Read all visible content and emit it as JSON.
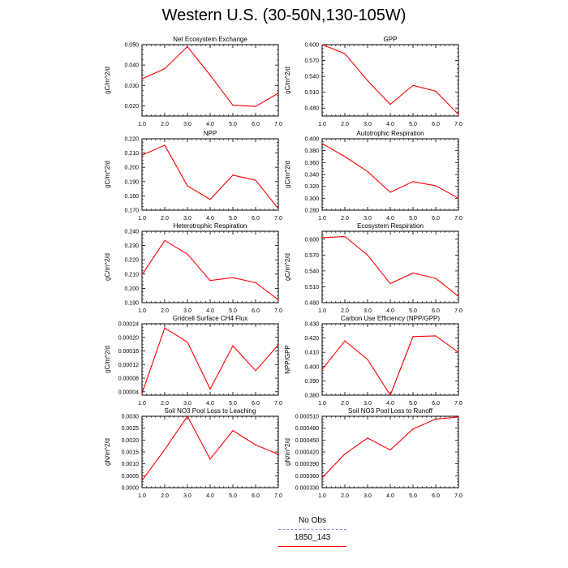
{
  "page": {
    "title": "Western U.S. (30-50N,130-105W)"
  },
  "legend": {
    "items": [
      {
        "name": "No Obs",
        "color": "#8a8aff",
        "style": "dashed"
      },
      {
        "name": "1850_143",
        "color": "#ff0000",
        "style": "solid"
      }
    ]
  },
  "chart_data": [
    {
      "type": "line",
      "title": "Net Ecosystem Exchange",
      "xlabel": "",
      "ylabel": "gC/m^2/d",
      "x": [
        1.0,
        2.0,
        3.0,
        4.0,
        5.0,
        6.0,
        7.0
      ],
      "xlim": [
        1.0,
        7.0
      ],
      "xticks": [
        "1.0",
        "2.0",
        "3.0",
        "4.0",
        "5.0",
        "6.0",
        "7.0"
      ],
      "ylim": [
        0.015,
        0.05
      ],
      "yticks": [
        "0.020",
        "0.030",
        "0.040",
        "0.050"
      ],
      "series": [
        {
          "name": "1850_143",
          "color": "#ff0000",
          "values": [
            0.0332,
            0.0382,
            0.049,
            0.035,
            0.0203,
            0.0197,
            0.0262
          ]
        }
      ]
    },
    {
      "type": "line",
      "title": "GPP",
      "xlabel": "",
      "ylabel": "gC/m^2/d",
      "x": [
        1.0,
        2.0,
        3.0,
        4.0,
        5.0,
        6.0,
        7.0
      ],
      "xlim": [
        1.0,
        7.0
      ],
      "xticks": [
        "1.0",
        "2.0",
        "3.0",
        "4.0",
        "5.0",
        "6.0",
        "7.0"
      ],
      "ylim": [
        0.465,
        0.6
      ],
      "yticks": [
        "0.480",
        "0.510",
        "0.540",
        "0.570",
        "0.600"
      ],
      "series": [
        {
          "name": "1850_143",
          "color": "#ff0000",
          "values": [
            0.6,
            0.583,
            0.532,
            0.487,
            0.523,
            0.512,
            0.468
          ]
        }
      ]
    },
    {
      "type": "line",
      "title": "NPP",
      "xlabel": "",
      "ylabel": "gC/m^2/d",
      "x": [
        1.0,
        2.0,
        3.0,
        4.0,
        5.0,
        6.0,
        7.0
      ],
      "xlim": [
        1.0,
        7.0
      ],
      "xticks": [
        "1.0",
        "2.0",
        "3.0",
        "4.0",
        "5.0",
        "6.0",
        "7.0"
      ],
      "ylim": [
        0.17,
        0.22
      ],
      "yticks": [
        "0.170",
        "0.180",
        "0.190",
        "0.200",
        "0.210",
        "0.220"
      ],
      "series": [
        {
          "name": "1850_143",
          "color": "#ff0000",
          "values": [
            0.2085,
            0.2155,
            0.187,
            0.1775,
            0.1945,
            0.191,
            0.171
          ]
        }
      ]
    },
    {
      "type": "line",
      "title": "Autotrophic Respiration",
      "xlabel": "",
      "ylabel": "gC/m^2/d",
      "x": [
        1.0,
        2.0,
        3.0,
        4.0,
        5.0,
        6.0,
        7.0
      ],
      "xlim": [
        1.0,
        7.0
      ],
      "xticks": [
        "1.0",
        "2.0",
        "3.0",
        "4.0",
        "5.0",
        "6.0",
        "7.0"
      ],
      "ylim": [
        0.28,
        0.4
      ],
      "yticks": [
        "0.280",
        "0.300",
        "0.320",
        "0.340",
        "0.360",
        "0.380",
        "0.400"
      ],
      "series": [
        {
          "name": "1850_143",
          "color": "#ff0000",
          "values": [
            0.392,
            0.37,
            0.345,
            0.31,
            0.328,
            0.321,
            0.3
          ]
        }
      ]
    },
    {
      "type": "line",
      "title": "Heterotrophic Respiration",
      "xlabel": "",
      "ylabel": "gC/m^2/d",
      "x": [
        1.0,
        2.0,
        3.0,
        4.0,
        5.0,
        6.0,
        7.0
      ],
      "xlim": [
        1.0,
        7.0
      ],
      "xticks": [
        "1.0",
        "2.0",
        "3.0",
        "4.0",
        "5.0",
        "6.0",
        "7.0"
      ],
      "ylim": [
        0.19,
        0.24
      ],
      "yticks": [
        "0.190",
        "0.200",
        "0.210",
        "0.220",
        "0.230",
        "0.240"
      ],
      "series": [
        {
          "name": "1850_143",
          "color": "#ff0000",
          "values": [
            0.2095,
            0.2335,
            0.224,
            0.2055,
            0.2075,
            0.204,
            0.192
          ]
        }
      ]
    },
    {
      "type": "line",
      "title": "Ecosystem Respiration",
      "xlabel": "",
      "ylabel": "gC/m^2/d",
      "x": [
        1.0,
        2.0,
        3.0,
        4.0,
        5.0,
        6.0,
        7.0
      ],
      "xlim": [
        1.0,
        7.0
      ],
      "xticks": [
        "1.0",
        "2.0",
        "3.0",
        "4.0",
        "5.0",
        "6.0",
        "7.0"
      ],
      "ylim": [
        0.48,
        0.615
      ],
      "yticks": [
        "0.480",
        "0.510",
        "0.540",
        "0.570",
        "0.600"
      ],
      "series": [
        {
          "name": "1850_143",
          "color": "#ff0000",
          "values": [
            0.603,
            0.605,
            0.57,
            0.516,
            0.536,
            0.526,
            0.492
          ]
        }
      ]
    },
    {
      "type": "line",
      "title": "Gridcell Surface CH4 Flux",
      "xlabel": "",
      "ylabel": "gC/m^2/d",
      "x": [
        1.0,
        2.0,
        3.0,
        4.0,
        5.0,
        6.0,
        7.0
      ],
      "xlim": [
        1.0,
        7.0
      ],
      "xticks": [
        "1.0",
        "2.0",
        "3.0",
        "4.0",
        "5.0",
        "6.0",
        "7.0"
      ],
      "ylim": [
        3e-05,
        0.00024
      ],
      "yticks": [
        "0.00004",
        "0.00008",
        "0.00012",
        "0.00016",
        "0.00020",
        "0.00024"
      ],
      "series": [
        {
          "name": "1850_143",
          "color": "#ff0000",
          "values": [
            3.5e-05,
            0.000228,
            0.000186,
            4.8e-05,
            0.000175,
            0.000102,
            0.000178
          ]
        }
      ]
    },
    {
      "type": "line",
      "title": "Carbon Use Efficiency (NPP/GPP)",
      "xlabel": "",
      "ylabel": "NPP/GPP",
      "x": [
        1.0,
        2.0,
        3.0,
        4.0,
        5.0,
        6.0,
        7.0
      ],
      "xlim": [
        1.0,
        7.0
      ],
      "xticks": [
        "1.0",
        "2.0",
        "3.0",
        "4.0",
        "5.0",
        "6.0",
        "7.0"
      ],
      "ylim": [
        0.38,
        0.43
      ],
      "yticks": [
        "0.380",
        "0.390",
        "0.400",
        "0.410",
        "0.420",
        "0.430"
      ],
      "series": [
        {
          "name": "1850_143",
          "color": "#ff0000",
          "values": [
            0.398,
            0.418,
            0.405,
            0.38,
            0.421,
            0.4215,
            0.41
          ]
        }
      ]
    },
    {
      "type": "line",
      "title": "Soil NO3 Pool Loss to Leaching",
      "xlabel": "",
      "ylabel": "gN/m^2/d",
      "x": [
        1.0,
        2.0,
        3.0,
        4.0,
        5.0,
        6.0,
        7.0
      ],
      "xlim": [
        1.0,
        7.0
      ],
      "xticks": [
        "1.0",
        "2.0",
        "3.0",
        "4.0",
        "5.0",
        "6.0",
        "7.0"
      ],
      "ylim": [
        0.0,
        0.003
      ],
      "yticks": [
        "0.0000",
        "0.0005",
        "0.0010",
        "0.0015",
        "0.0020",
        "0.0025",
        "0.0030"
      ],
      "series": [
        {
          "name": "1850_143",
          "color": "#ff0000",
          "values": [
            0.0003,
            0.0016,
            0.003,
            0.0012,
            0.0024,
            0.0018,
            0.0014
          ]
        }
      ]
    },
    {
      "type": "line",
      "title": "Soil NO3 Pool Loss to Runoff",
      "xlabel": "",
      "ylabel": "gN/m^2/d",
      "x": [
        1.0,
        2.0,
        3.0,
        4.0,
        5.0,
        6.0,
        7.0
      ],
      "xlim": [
        1.0,
        7.0
      ],
      "xticks": [
        "1.0",
        "2.0",
        "3.0",
        "4.0",
        "5.0",
        "6.0",
        "7.0"
      ],
      "ylim": [
        0.00033,
        0.00051
      ],
      "yticks": [
        "0.000330",
        "0.000360",
        "0.000390",
        "0.000420",
        "0.000450",
        "0.000480",
        "0.000510"
      ],
      "series": [
        {
          "name": "1850_143",
          "color": "#ff0000",
          "values": [
            0.000355,
            0.000415,
            0.000455,
            0.000425,
            0.000478,
            0.000503,
            0.000508
          ]
        }
      ]
    }
  ]
}
